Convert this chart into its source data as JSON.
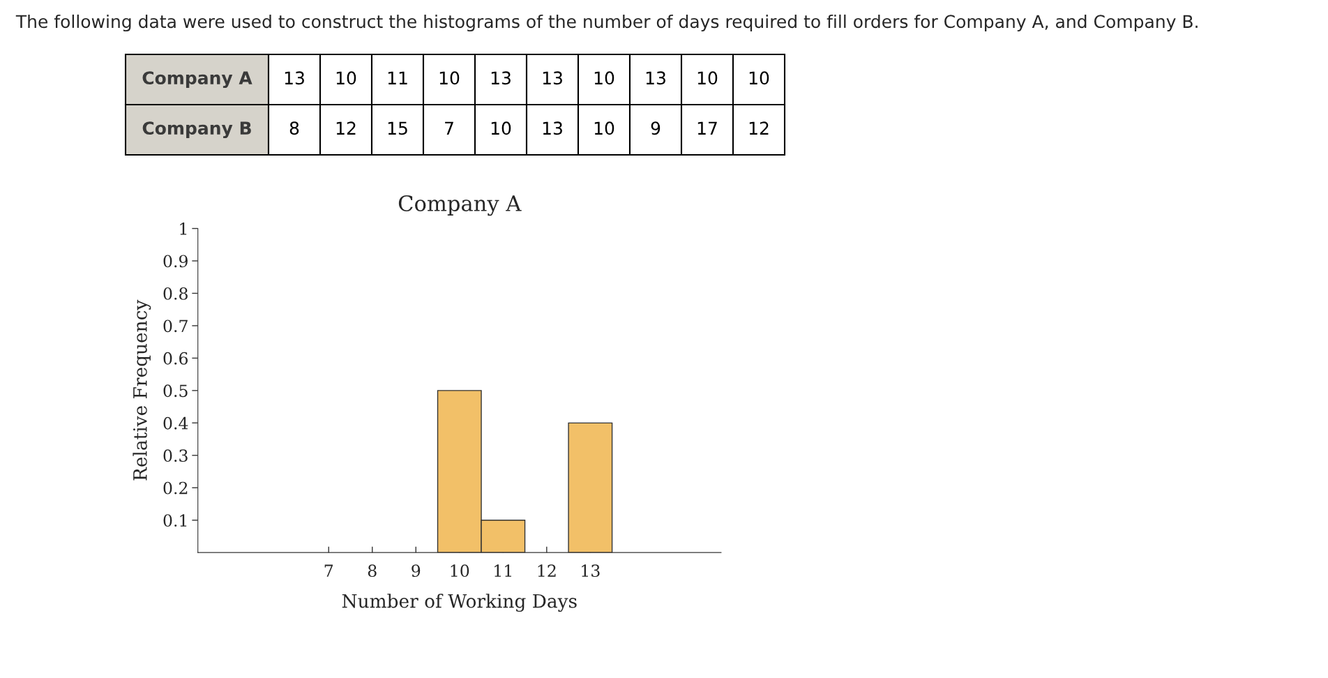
{
  "chart_data": {
    "type": "histogram",
    "title": "Company A",
    "xlabel": "Number of Working Days",
    "ylabel": "Relative Frequency",
    "bins": [
      9.5,
      10.5,
      11.5,
      12.5,
      13.5
    ],
    "values": [
      0.5,
      0.1,
      0,
      0.4
    ],
    "color": "#f2c068",
    "xlim": [
      4,
      16
    ],
    "xticks": [
      7,
      8,
      9,
      10,
      11,
      12,
      13
    ],
    "ylim": [
      0,
      1
    ],
    "yticks": [
      0.1,
      0.2,
      0.3,
      0.4,
      0.5,
      0.6,
      0.7,
      0.8,
      0.9,
      1
    ],
    "grid": false,
    "annotations": [
      "The following data were used to construct the histograms of the number of days required to fill orders for Company A, and Company B.",
      "Company A",
      "13",
      "10",
      "11",
      "10",
      "13",
      "13",
      "10",
      "13",
      "10",
      "10",
      "Company B",
      "8",
      "12",
      "15",
      "7",
      "10",
      "13",
      "10",
      "9",
      "17",
      "12"
    ]
  }
}
